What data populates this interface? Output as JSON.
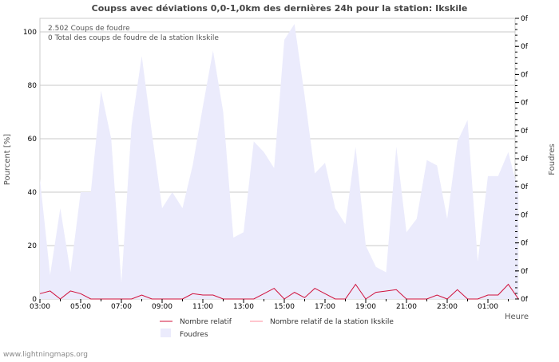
{
  "chart_data": {
    "type": "area",
    "title": "Coupss avec déviations 0,0-1,0km des dernières 24h pour la station: Ikskile",
    "ylabel": "Pourcent   [%]",
    "ylabel_right": "Foudres",
    "xlabel": "Heure",
    "ylim": [
      0,
      105
    ],
    "yticks": [
      0,
      20,
      40,
      60,
      80,
      100
    ],
    "right_ticks": [
      "0f",
      "0f",
      "0f",
      "0f",
      "0f",
      "0f",
      "0f",
      "0f",
      "0f",
      "0f",
      "0f"
    ],
    "xtick_labels": [
      "03:00",
      "05:00",
      "07:00",
      "09:00",
      "11:00",
      "13:00",
      "15:00",
      "17:00",
      "19:00",
      "21:00",
      "23:00",
      "01:00"
    ],
    "grid": true,
    "info_lines": [
      "2.502  Coups de foudre",
      "0 Total des coups de foudre de la station Ikskile"
    ],
    "series": [
      {
        "name": "Foudres",
        "color": "#ebebfc",
        "type": "area",
        "values": [
          45,
          9,
          34,
          10,
          40,
          40,
          78,
          60,
          6,
          65,
          91,
          62,
          34,
          40,
          34,
          50,
          72,
          93,
          70,
          23,
          25,
          59,
          55,
          49,
          97,
          103,
          76,
          47,
          51,
          34,
          28,
          57,
          20,
          12,
          10,
          57,
          25,
          30,
          52,
          50,
          30,
          59,
          67,
          14,
          46,
          46,
          55,
          40
        ]
      },
      {
        "name": "Nombre relatif",
        "color": "#d0103a",
        "type": "line",
        "values": [
          2,
          3,
          0,
          3,
          2,
          0,
          0,
          0,
          0,
          0,
          1.5,
          0,
          0,
          0,
          0,
          2,
          1.5,
          1.5,
          0,
          0,
          0,
          0,
          2,
          4,
          0,
          2.5,
          0.5,
          4,
          2,
          0,
          0,
          5.5,
          0,
          2.5,
          3,
          3.5,
          0,
          0,
          0,
          1.5,
          0,
          3.5,
          0,
          0,
          1.5,
          1.5,
          5.5,
          0
        ]
      },
      {
        "name": "Nombre relatif de la station Ikskile",
        "color": "#ff8c9c",
        "type": "line",
        "values": []
      }
    ],
    "legend_position": "bottom"
  },
  "footer": "www.lightningmaps.org"
}
